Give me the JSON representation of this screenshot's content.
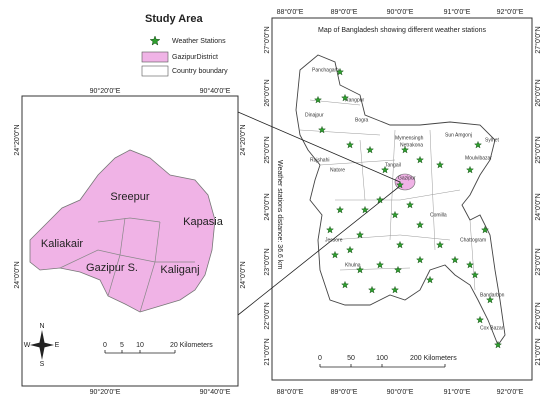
{
  "legend": {
    "title": "Study Area",
    "items": [
      "Weather Stations",
      "GazipurDistrict",
      "Country boundary"
    ]
  },
  "inset": {
    "top_labels": [
      "90°20'0\"E",
      "90°40'0\"E"
    ],
    "bottom_labels": [
      "90°20'0\"E",
      "90°40'0\"E"
    ],
    "left_labels": [
      "24°20'0\"N",
      "24°0'0\"N"
    ],
    "right_labels": [
      "24°20'0\"N",
      "24°0'0\"N"
    ],
    "places": [
      "Sreepur",
      "Kapasia",
      "Kaliakair",
      "Gazipur S.",
      "Kaliganj"
    ],
    "scale": [
      "0",
      "5",
      "10",
      "20 Kilometers"
    ],
    "north_arrow": [
      "N",
      "W",
      "E",
      "S"
    ]
  },
  "main": {
    "title": "Map of Bangladesh showing different weather stations",
    "top_labels": [
      "88°0'0\"E",
      "89°0'0\"E",
      "90°0'0\"E",
      "91°0'0\"E",
      "92°0'0\"E"
    ],
    "bottom_labels": [
      "88°0'0\"E",
      "89°0'0\"E",
      "90°0'0\"E",
      "91°0'0\"E",
      "92°0'0\"E"
    ],
    "left_labels": [
      "27°0'0\"N",
      "26°0'0\"N",
      "25°0'0\"N",
      "24°0'0\"N",
      "23°0'0\"N",
      "22°0'0\"N",
      "21°0'0\"N"
    ],
    "right_labels": [
      "27°0'0\"N",
      "26°0'0\"N",
      "25°0'0\"N",
      "24°0'0\"N",
      "23°0'0\"N",
      "22°0'0\"N",
      "21°0'0\"N"
    ],
    "distance_label": "Weather stations distance: 36.6 km",
    "scale": [
      "0",
      "50",
      "100",
      "200 Kilometers"
    ],
    "places": [
      "Panchagarh",
      "Rangpur",
      "Dinajpur",
      "Bogra",
      "Rajshahi",
      "Natore",
      "Tangail",
      "Mymensingh",
      "Netrakona",
      "Sun Amgonj",
      "Sylhet",
      "Moulvibazar",
      "Gazipur",
      "Comilla",
      "Jessore",
      "Khulna",
      "Chattogram",
      "Bandarbon",
      "Cox Bazar"
    ]
  }
}
